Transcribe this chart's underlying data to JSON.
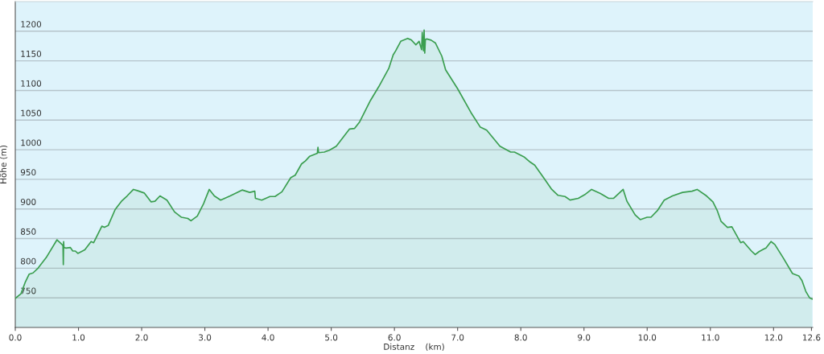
{
  "chart_data": {
    "type": "area",
    "xlabel": "Distanz    (km)",
    "ylabel": "Höhe (m)",
    "x": [
      0,
      0.09,
      0.16,
      0.22,
      0.28,
      0.36,
      0.49,
      0.66,
      0.74,
      0.755,
      0.76,
      0.765,
      0.77,
      0.8,
      0.87,
      0.91,
      0.95,
      0.99,
      1.1,
      1.2,
      1.24,
      1.37,
      1.41,
      1.47,
      1.58,
      1.68,
      1.77,
      1.87,
      1.93,
      2.04,
      2.15,
      2.21,
      2.29,
      2.4,
      2.52,
      2.63,
      2.73,
      2.78,
      2.88,
      2.98,
      3.07,
      3.15,
      3.25,
      3.4,
      3.59,
      3.71,
      3.79,
      3.8,
      3.9,
      4.03,
      4.11,
      4.22,
      4.36,
      4.43,
      4.53,
      4.59,
      4.66,
      4.78,
      4.79,
      4.8,
      4.89,
      4.97,
      5.08,
      5.29,
      5.37,
      5.45,
      5.62,
      5.75,
      5.91,
      5.98,
      6.02,
      6.1,
      6.21,
      6.27,
      6.34,
      6.39,
      6.43,
      6.44,
      6.46,
      6.47,
      6.48,
      6.49,
      6.51,
      6.58,
      6.65,
      6.75,
      6.81,
      7.0,
      7.21,
      7.36,
      7.46,
      7.67,
      7.84,
      7.9,
      8.05,
      8.15,
      8.22,
      8.36,
      8.49,
      8.59,
      8.7,
      8.78,
      8.91,
      9.01,
      9.12,
      9.26,
      9.39,
      9.47,
      9.62,
      9.68,
      9.81,
      9.89,
      10.0,
      10.06,
      10.16,
      10.27,
      10.4,
      10.56,
      10.71,
      10.79,
      10.94,
      11.04,
      11.11,
      11.17,
      11.27,
      11.34,
      11.48,
      11.52,
      11.65,
      11.71,
      11.77,
      11.84,
      11.88,
      11.96,
      12.02,
      12.15,
      12.3,
      12.4,
      12.45,
      12.51,
      12.57,
      12.61
    ],
    "series": [
      {
        "color": "#3a9e4f",
        "values": [
          749,
          757,
          777,
          790,
          792,
          800,
          818,
          848,
          840,
          838,
          806,
          845,
          835,
          834,
          835,
          829,
          829,
          825,
          831,
          845,
          843,
          871,
          869,
          872,
          899,
          913,
          922,
          933,
          931,
          927,
          912,
          913,
          922,
          915,
          895,
          886,
          884,
          880,
          888,
          909,
          933,
          922,
          915,
          922,
          932,
          928,
          930,
          918,
          915,
          921,
          921,
          929,
          953,
          957,
          976,
          981,
          989,
          994,
          1004,
          995,
          996,
          999,
          1006,
          1035,
          1036,
          1047,
          1083,
          1106,
          1137,
          1160,
          1167,
          1183,
          1188,
          1185,
          1177,
          1183,
          1169,
          1198,
          1167,
          1202,
          1163,
          1186,
          1187,
          1185,
          1180,
          1158,
          1135,
          1103,
          1063,
          1038,
          1033,
          1006,
          996,
          996,
          988,
          979,
          974,
          953,
          933,
          923,
          921,
          915,
          918,
          924,
          933,
          926,
          918,
          918,
          933,
          913,
          890,
          882,
          886,
          886,
          897,
          915,
          922,
          928,
          930,
          933,
          922,
          912,
          897,
          879,
          869,
          870,
          843,
          845,
          829,
          823,
          828,
          832,
          834,
          845,
          840,
          818,
          791,
          787,
          779,
          761,
          750,
          748
        ]
      }
    ],
    "xlim": [
      0,
      12.62
    ],
    "ylim": [
      700,
      1250
    ],
    "xticks": [
      {
        "value": 0,
        "label": "0.0"
      },
      {
        "value": 1,
        "label": "1.0"
      },
      {
        "value": 2,
        "label": "2.0"
      },
      {
        "value": 3,
        "label": "3.0"
      },
      {
        "value": 4,
        "label": "4.0"
      },
      {
        "value": 5,
        "label": "5.0"
      },
      {
        "value": 6,
        "label": "6.0"
      },
      {
        "value": 7,
        "label": "7.0"
      },
      {
        "value": 8,
        "label": "8.0"
      },
      {
        "value": 9,
        "label": "9.0"
      },
      {
        "value": 10,
        "label": "10.0"
      },
      {
        "value": 11,
        "label": "11.0"
      },
      {
        "value": 12,
        "label": "12.0"
      },
      {
        "value": 12.6,
        "label": "12.6"
      }
    ],
    "yticks": [
      750,
      800,
      850,
      900,
      950,
      1000,
      1050,
      1100,
      1150,
      1200
    ],
    "grid": "y",
    "marker": "none",
    "line_style": "solid"
  }
}
